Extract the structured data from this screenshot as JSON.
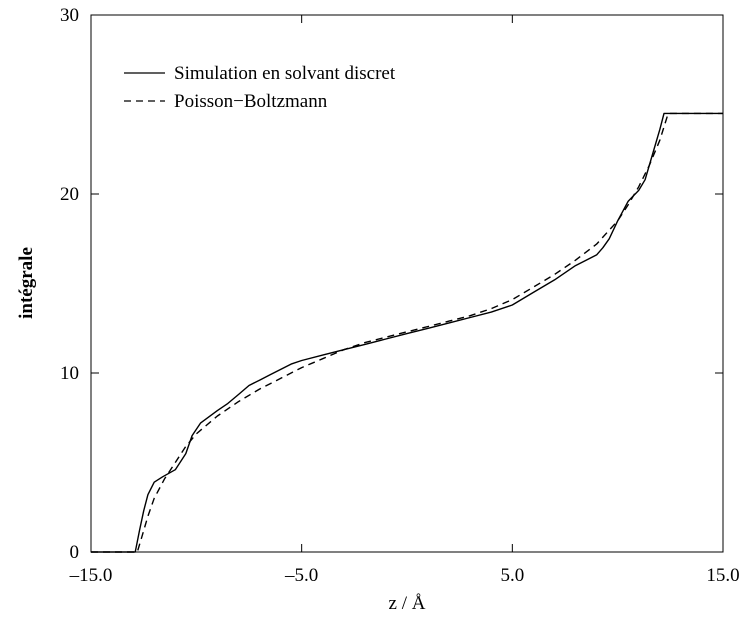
{
  "chart_data": {
    "type": "line",
    "title": "",
    "xlabel": "z  /  Å",
    "ylabel": "intégrale",
    "xlim": [
      -15,
      15
    ],
    "ylim": [
      0,
      30
    ],
    "x_ticks": [
      -15,
      -5,
      5,
      15
    ],
    "x_tick_labels": [
      "–15.0",
      "–5.0",
      "5.0",
      "15.0"
    ],
    "y_ticks": [
      0,
      10,
      20,
      30
    ],
    "y_tick_labels": [
      "0",
      "10",
      "20",
      "30"
    ],
    "grid": false,
    "legend_position": "top-left",
    "series": [
      {
        "name": "Simulation en solvant discret",
        "style": "solid",
        "color": "#000000",
        "x": [
          -15,
          -12.9,
          -12.85,
          -12.7,
          -12.5,
          -12.3,
          -12.0,
          -11.6,
          -11.0,
          -10.5,
          -10.2,
          -9.8,
          -9.0,
          -8.5,
          -8.0,
          -7.5,
          -7.0,
          -6.5,
          -5.5,
          -5.0,
          -4.0,
          -3.0,
          -2.0,
          -1.0,
          0.0,
          1.0,
          2.0,
          3.0,
          4.0,
          5.0,
          6.0,
          7.0,
          8.0,
          8.5,
          9.0,
          9.3,
          9.6,
          10.0,
          10.5,
          11.0,
          11.3,
          11.7,
          12.0,
          12.2,
          15.0
        ],
        "y": [
          0,
          0,
          0.3,
          1.2,
          2.3,
          3.2,
          3.9,
          4.2,
          4.6,
          5.5,
          6.5,
          7.2,
          7.9,
          8.3,
          8.8,
          9.3,
          9.6,
          9.9,
          10.5,
          10.7,
          11.0,
          11.3,
          11.6,
          11.9,
          12.2,
          12.5,
          12.8,
          13.1,
          13.4,
          13.8,
          14.5,
          15.2,
          16.0,
          16.3,
          16.6,
          17.0,
          17.5,
          18.5,
          19.6,
          20.2,
          20.8,
          22.4,
          23.6,
          24.5,
          24.5
        ]
      },
      {
        "name": "Poisson−Boltzmann",
        "style": "dashed",
        "color": "#000000",
        "x": [
          -15,
          -12.8,
          -12.6,
          -12.3,
          -12.0,
          -11.5,
          -11.0,
          -10.5,
          -10.0,
          -9.0,
          -8.0,
          -7.0,
          -6.0,
          -5.0,
          -4.0,
          -3.0,
          -2.0,
          -1.0,
          0.0,
          1.0,
          2.0,
          3.0,
          4.0,
          5.0,
          6.0,
          7.0,
          8.0,
          9.0,
          10.0,
          10.5,
          11.0,
          11.5,
          12.0,
          12.4,
          15.0
        ],
        "y": [
          0,
          0,
          0.8,
          2.0,
          3.0,
          4.1,
          5.0,
          5.9,
          6.6,
          7.6,
          8.4,
          9.1,
          9.7,
          10.3,
          10.8,
          11.3,
          11.7,
          12.0,
          12.3,
          12.6,
          12.9,
          13.2,
          13.6,
          14.1,
          14.8,
          15.5,
          16.3,
          17.2,
          18.5,
          19.4,
          20.4,
          21.6,
          23.0,
          24.5,
          24.5
        ]
      }
    ]
  }
}
